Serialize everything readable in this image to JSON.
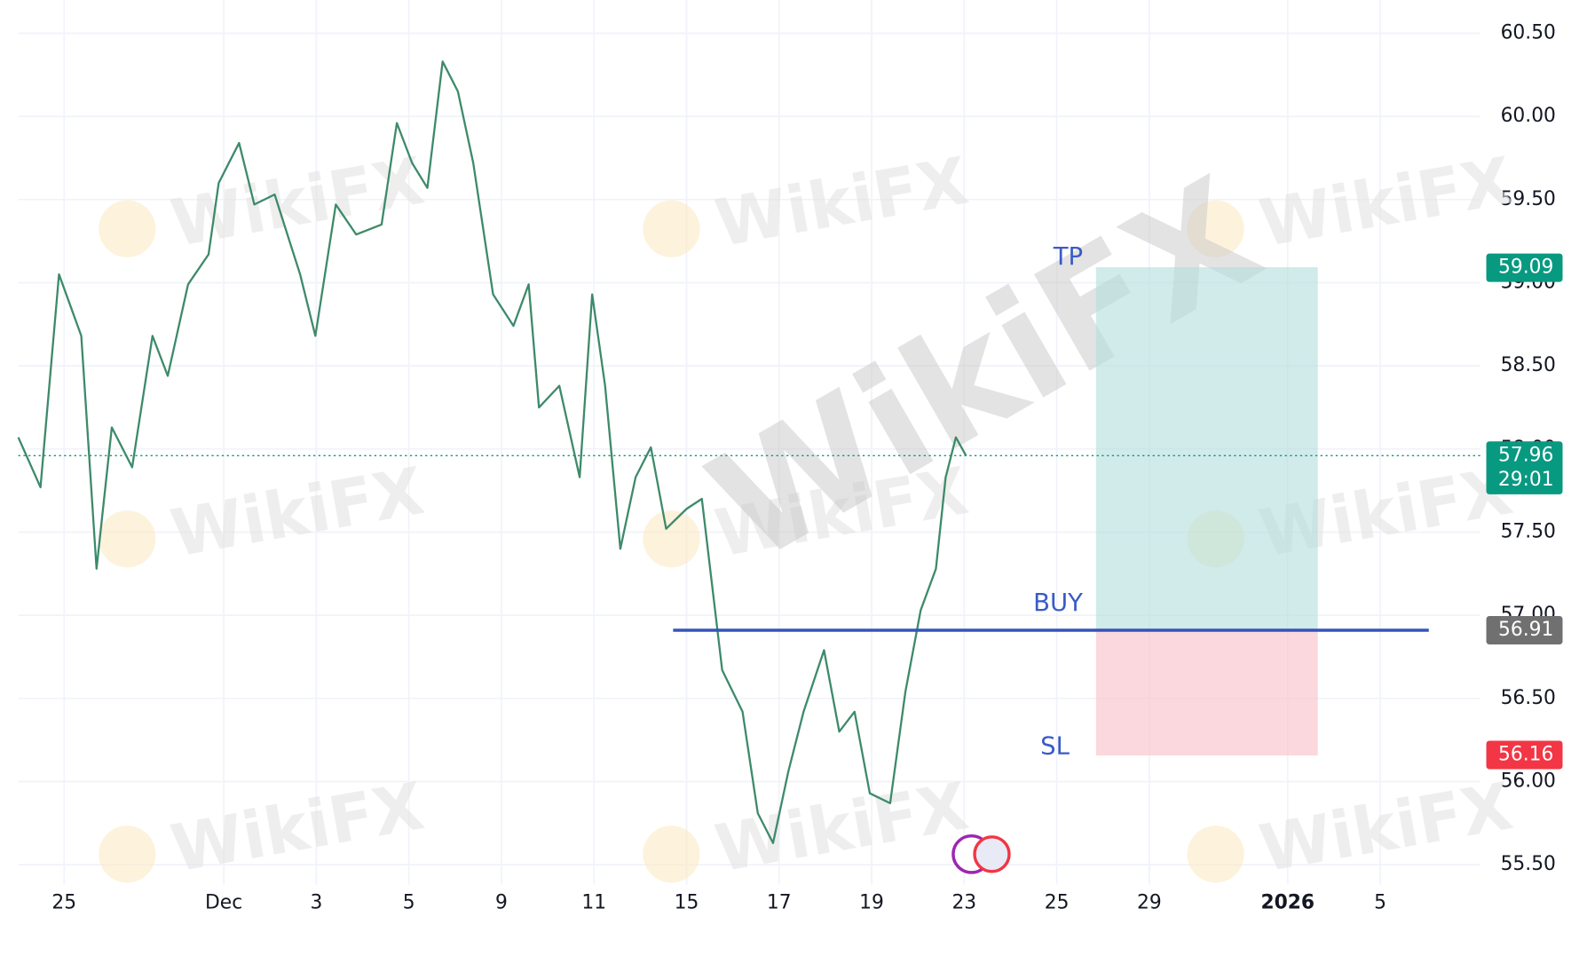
{
  "chart_data": {
    "type": "line",
    "watermark": "WikiFX",
    "x": [
      -0.99,
      -0.51,
      -0.11,
      0.37,
      0.7,
      1.03,
      1.47,
      1.91,
      2.24,
      2.68,
      3.12,
      3.34,
      3.78,
      4.11,
      4.55,
      5.1,
      5.43,
      5.87,
      6.31,
      6.86,
      7.19,
      7.52,
      7.85,
      8.18,
      8.51,
      8.84,
      9.27,
      9.71,
      10.04,
      10.26,
      10.7,
      11.14,
      11.41,
      11.69,
      12.02,
      12.35,
      12.68,
      13.01,
      13.45,
      13.78,
      14.22,
      14.66,
      14.99,
      15.32,
      15.65,
      15.98,
      16.42,
      16.75,
      17.08,
      17.41,
      17.85,
      18.18,
      18.51,
      18.84,
      19.05,
      19.27,
      19.49
    ],
    "series": [
      {
        "color": "#3d8a6a",
        "values": [
          58.07,
          57.77,
          59.05,
          58.68,
          57.28,
          58.13,
          57.89,
          58.68,
          58.44,
          58.99,
          59.17,
          59.6,
          59.84,
          59.47,
          59.53,
          59.05,
          58.68,
          59.47,
          59.29,
          59.35,
          59.96,
          59.72,
          59.57,
          60.33,
          60.15,
          59.72,
          58.93,
          58.74,
          58.99,
          58.25,
          58.38,
          57.83,
          58.93,
          58.38,
          57.4,
          57.83,
          58.01,
          57.52,
          57.64,
          57.7,
          56.67,
          56.42,
          55.81,
          55.63,
          56.06,
          56.42,
          56.79,
          56.3,
          56.42,
          55.93,
          55.87,
          56.54,
          57.03,
          57.28,
          57.83,
          58.07,
          57.96
        ]
      }
    ],
    "xlim": [
      -0.99,
      30.6
    ],
    "ylim": [
      55.38,
      60.7
    ],
    "xticks": [
      {
        "value": 0,
        "label": "25"
      },
      {
        "value": 3.45,
        "label": "Dec"
      },
      {
        "value": 5.45,
        "label": "3"
      },
      {
        "value": 7.45,
        "label": "5"
      },
      {
        "value": 9.45,
        "label": "9"
      },
      {
        "value": 11.45,
        "label": "11"
      },
      {
        "value": 13.45,
        "label": "15"
      },
      {
        "value": 15.45,
        "label": "17"
      },
      {
        "value": 17.45,
        "label": "19"
      },
      {
        "value": 19.45,
        "label": "23"
      },
      {
        "value": 21.45,
        "label": "25"
      },
      {
        "value": 23.45,
        "label": "29"
      },
      {
        "value": 26.44,
        "label": "2026"
      },
      {
        "value": 28.44,
        "label": "5"
      }
    ],
    "yticks": [
      {
        "value": 55.5,
        "label": "55.50"
      },
      {
        "value": 56,
        "label": "56.00"
      },
      {
        "value": 56.5,
        "label": "56.50"
      },
      {
        "value": 57,
        "label": "57.00"
      },
      {
        "value": 57.5,
        "label": "57.50"
      },
      {
        "value": 58,
        "label": "58.00"
      },
      {
        "value": 58.5,
        "label": "58.50"
      },
      {
        "value": 59,
        "label": "59.00"
      },
      {
        "value": 59.5,
        "label": "59.50"
      },
      {
        "value": 60,
        "label": "60.00"
      },
      {
        "value": 60.5,
        "label": "60.50"
      }
    ],
    "grid": true,
    "last_price": 57.96,
    "countdown": "29:01",
    "position": {
      "tp": 59.09,
      "entry": 56.91,
      "sl": 56.16,
      "tp_label": "TP",
      "entry_label": "BUY",
      "sl_label": "SL",
      "start": 22.31,
      "end": 27.08,
      "line_start": 13.16,
      "line_end": 29.49
    }
  }
}
